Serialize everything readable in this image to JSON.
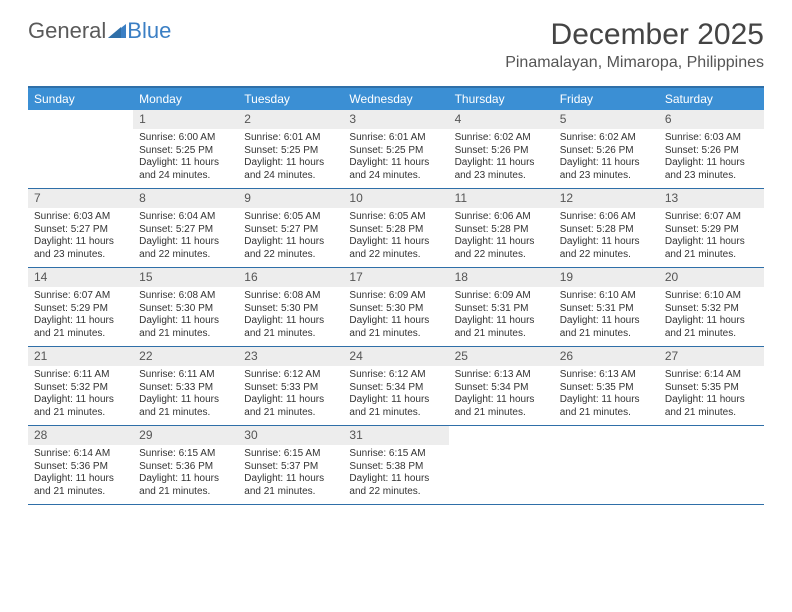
{
  "logo": {
    "general": "General",
    "blue": "Blue"
  },
  "title": "December 2025",
  "location": "Pinamalayan, Mimaropa, Philippines",
  "colors": {
    "header_bg": "#3b8fd4",
    "header_text": "#ffffff",
    "border": "#2f6fa8",
    "daynum_bg": "#ededed",
    "text": "#333333",
    "logo_gray": "#5a5a5a",
    "logo_blue": "#3b7fc4",
    "page_bg": "#ffffff"
  },
  "typography": {
    "font_family": "Arial",
    "title_fontsize": 30,
    "location_fontsize": 16,
    "dayheader_fontsize": 12,
    "daynum_fontsize": 12,
    "body_fontsize": 10
  },
  "day_headers": [
    "Sunday",
    "Monday",
    "Tuesday",
    "Wednesday",
    "Thursday",
    "Friday",
    "Saturday"
  ],
  "weeks": [
    [
      null,
      {
        "n": "1",
        "sunrise": "Sunrise: 6:00 AM",
        "sunset": "Sunset: 5:25 PM",
        "d1": "Daylight: 11 hours",
        "d2": "and 24 minutes."
      },
      {
        "n": "2",
        "sunrise": "Sunrise: 6:01 AM",
        "sunset": "Sunset: 5:25 PM",
        "d1": "Daylight: 11 hours",
        "d2": "and 24 minutes."
      },
      {
        "n": "3",
        "sunrise": "Sunrise: 6:01 AM",
        "sunset": "Sunset: 5:25 PM",
        "d1": "Daylight: 11 hours",
        "d2": "and 24 minutes."
      },
      {
        "n": "4",
        "sunrise": "Sunrise: 6:02 AM",
        "sunset": "Sunset: 5:26 PM",
        "d1": "Daylight: 11 hours",
        "d2": "and 23 minutes."
      },
      {
        "n": "5",
        "sunrise": "Sunrise: 6:02 AM",
        "sunset": "Sunset: 5:26 PM",
        "d1": "Daylight: 11 hours",
        "d2": "and 23 minutes."
      },
      {
        "n": "6",
        "sunrise": "Sunrise: 6:03 AM",
        "sunset": "Sunset: 5:26 PM",
        "d1": "Daylight: 11 hours",
        "d2": "and 23 minutes."
      }
    ],
    [
      {
        "n": "7",
        "sunrise": "Sunrise: 6:03 AM",
        "sunset": "Sunset: 5:27 PM",
        "d1": "Daylight: 11 hours",
        "d2": "and 23 minutes."
      },
      {
        "n": "8",
        "sunrise": "Sunrise: 6:04 AM",
        "sunset": "Sunset: 5:27 PM",
        "d1": "Daylight: 11 hours",
        "d2": "and 22 minutes."
      },
      {
        "n": "9",
        "sunrise": "Sunrise: 6:05 AM",
        "sunset": "Sunset: 5:27 PM",
        "d1": "Daylight: 11 hours",
        "d2": "and 22 minutes."
      },
      {
        "n": "10",
        "sunrise": "Sunrise: 6:05 AM",
        "sunset": "Sunset: 5:28 PM",
        "d1": "Daylight: 11 hours",
        "d2": "and 22 minutes."
      },
      {
        "n": "11",
        "sunrise": "Sunrise: 6:06 AM",
        "sunset": "Sunset: 5:28 PM",
        "d1": "Daylight: 11 hours",
        "d2": "and 22 minutes."
      },
      {
        "n": "12",
        "sunrise": "Sunrise: 6:06 AM",
        "sunset": "Sunset: 5:28 PM",
        "d1": "Daylight: 11 hours",
        "d2": "and 22 minutes."
      },
      {
        "n": "13",
        "sunrise": "Sunrise: 6:07 AM",
        "sunset": "Sunset: 5:29 PM",
        "d1": "Daylight: 11 hours",
        "d2": "and 21 minutes."
      }
    ],
    [
      {
        "n": "14",
        "sunrise": "Sunrise: 6:07 AM",
        "sunset": "Sunset: 5:29 PM",
        "d1": "Daylight: 11 hours",
        "d2": "and 21 minutes."
      },
      {
        "n": "15",
        "sunrise": "Sunrise: 6:08 AM",
        "sunset": "Sunset: 5:30 PM",
        "d1": "Daylight: 11 hours",
        "d2": "and 21 minutes."
      },
      {
        "n": "16",
        "sunrise": "Sunrise: 6:08 AM",
        "sunset": "Sunset: 5:30 PM",
        "d1": "Daylight: 11 hours",
        "d2": "and 21 minutes."
      },
      {
        "n": "17",
        "sunrise": "Sunrise: 6:09 AM",
        "sunset": "Sunset: 5:30 PM",
        "d1": "Daylight: 11 hours",
        "d2": "and 21 minutes."
      },
      {
        "n": "18",
        "sunrise": "Sunrise: 6:09 AM",
        "sunset": "Sunset: 5:31 PM",
        "d1": "Daylight: 11 hours",
        "d2": "and 21 minutes."
      },
      {
        "n": "19",
        "sunrise": "Sunrise: 6:10 AM",
        "sunset": "Sunset: 5:31 PM",
        "d1": "Daylight: 11 hours",
        "d2": "and 21 minutes."
      },
      {
        "n": "20",
        "sunrise": "Sunrise: 6:10 AM",
        "sunset": "Sunset: 5:32 PM",
        "d1": "Daylight: 11 hours",
        "d2": "and 21 minutes."
      }
    ],
    [
      {
        "n": "21",
        "sunrise": "Sunrise: 6:11 AM",
        "sunset": "Sunset: 5:32 PM",
        "d1": "Daylight: 11 hours",
        "d2": "and 21 minutes."
      },
      {
        "n": "22",
        "sunrise": "Sunrise: 6:11 AM",
        "sunset": "Sunset: 5:33 PM",
        "d1": "Daylight: 11 hours",
        "d2": "and 21 minutes."
      },
      {
        "n": "23",
        "sunrise": "Sunrise: 6:12 AM",
        "sunset": "Sunset: 5:33 PM",
        "d1": "Daylight: 11 hours",
        "d2": "and 21 minutes."
      },
      {
        "n": "24",
        "sunrise": "Sunrise: 6:12 AM",
        "sunset": "Sunset: 5:34 PM",
        "d1": "Daylight: 11 hours",
        "d2": "and 21 minutes."
      },
      {
        "n": "25",
        "sunrise": "Sunrise: 6:13 AM",
        "sunset": "Sunset: 5:34 PM",
        "d1": "Daylight: 11 hours",
        "d2": "and 21 minutes."
      },
      {
        "n": "26",
        "sunrise": "Sunrise: 6:13 AM",
        "sunset": "Sunset: 5:35 PM",
        "d1": "Daylight: 11 hours",
        "d2": "and 21 minutes."
      },
      {
        "n": "27",
        "sunrise": "Sunrise: 6:14 AM",
        "sunset": "Sunset: 5:35 PM",
        "d1": "Daylight: 11 hours",
        "d2": "and 21 minutes."
      }
    ],
    [
      {
        "n": "28",
        "sunrise": "Sunrise: 6:14 AM",
        "sunset": "Sunset: 5:36 PM",
        "d1": "Daylight: 11 hours",
        "d2": "and 21 minutes."
      },
      {
        "n": "29",
        "sunrise": "Sunrise: 6:15 AM",
        "sunset": "Sunset: 5:36 PM",
        "d1": "Daylight: 11 hours",
        "d2": "and 21 minutes."
      },
      {
        "n": "30",
        "sunrise": "Sunrise: 6:15 AM",
        "sunset": "Sunset: 5:37 PM",
        "d1": "Daylight: 11 hours",
        "d2": "and 21 minutes."
      },
      {
        "n": "31",
        "sunrise": "Sunrise: 6:15 AM",
        "sunset": "Sunset: 5:38 PM",
        "d1": "Daylight: 11 hours",
        "d2": "and 22 minutes."
      },
      null,
      null,
      null
    ]
  ]
}
